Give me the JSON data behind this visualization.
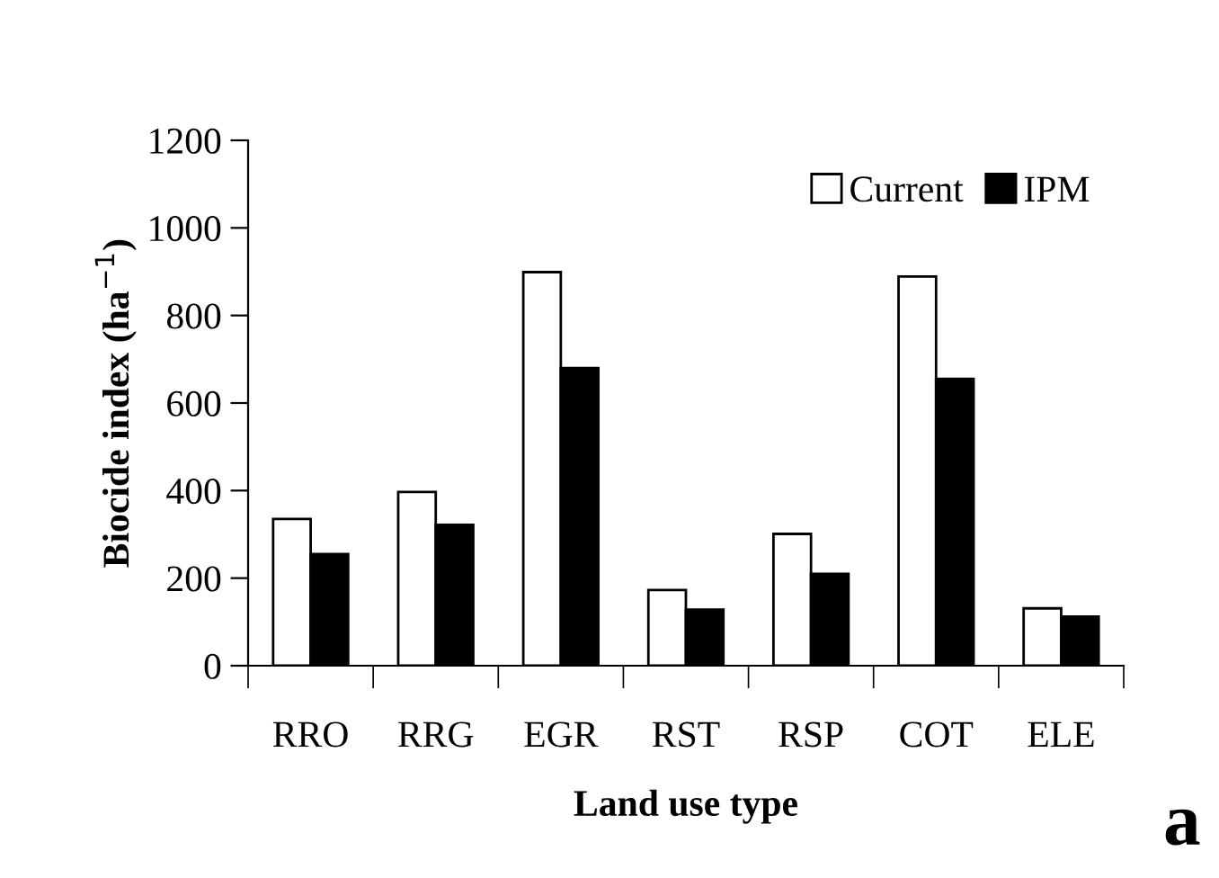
{
  "chart_data": {
    "type": "bar",
    "xlabel": "Land use type",
    "ylabel": "Biocide index (ha$^{−1}$)",
    "categories": [
      "RRO",
      "RRG",
      "EGR",
      "RST",
      "RSP",
      "COT",
      "ELE"
    ],
    "series": [
      {
        "name": "Current",
        "color": "#ffffff",
        "values": [
          335,
          397,
          899,
          173,
          301,
          889,
          131
        ]
      },
      {
        "name": "IPM",
        "color": "#000000",
        "values": [
          255,
          322,
          680,
          128,
          210,
          655,
          112
        ]
      }
    ],
    "ylim": [
      0,
      1200
    ],
    "yticks": [
      0,
      200,
      400,
      600,
      800,
      1000,
      1200
    ],
    "grid": false,
    "legend": "top right",
    "annotations": [
      "a"
    ]
  }
}
